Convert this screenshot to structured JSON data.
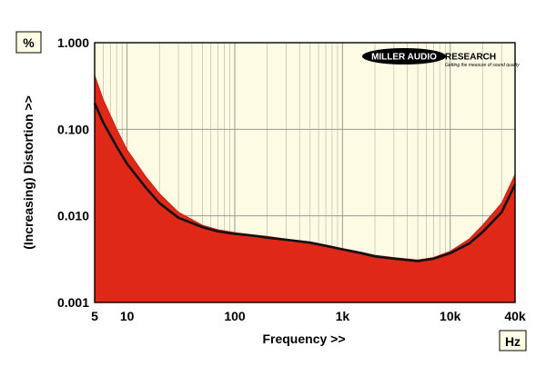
{
  "chart_data": {
    "type": "area",
    "title": "",
    "xlabel": "Frequency >>",
    "ylabel": "(Increasing) Distortion >>",
    "x_unit": "Hz",
    "y_unit": "%",
    "xscale": "log",
    "yscale": "log",
    "xlim": [
      5,
      40000
    ],
    "ylim": [
      0.001,
      1.0
    ],
    "x_ticks": [
      {
        "value": 5,
        "label": "5"
      },
      {
        "value": 10,
        "label": "10"
      },
      {
        "value": 100,
        "label": "100"
      },
      {
        "value": 1000,
        "label": "1k"
      },
      {
        "value": 10000,
        "label": "10k"
      },
      {
        "value": 40000,
        "label": "40k"
      }
    ],
    "y_ticks": [
      {
        "value": 1.0,
        "label": "1.000"
      },
      {
        "value": 0.1,
        "label": "0.100"
      },
      {
        "value": 0.01,
        "label": "0.010"
      },
      {
        "value": 0.001,
        "label": "0.001"
      }
    ],
    "grid": true,
    "series": [
      {
        "role": "upper-envelope",
        "color": "#e02818",
        "x": [
          5,
          6,
          8,
          10,
          15,
          20,
          30,
          50,
          70,
          100,
          150,
          200,
          300,
          500,
          700,
          1000,
          1500,
          2000,
          3000,
          5000,
          7000,
          10000,
          15000,
          20000,
          30000,
          40000
        ],
        "y": [
          0.42,
          0.22,
          0.1,
          0.058,
          0.028,
          0.018,
          0.011,
          0.0078,
          0.0069,
          0.0064,
          0.006,
          0.0058,
          0.0054,
          0.005,
          0.0046,
          0.0042,
          0.0038,
          0.0035,
          0.0033,
          0.0031,
          0.0033,
          0.0039,
          0.0054,
          0.0078,
          0.014,
          0.03
        ]
      },
      {
        "role": "mean-trace",
        "color": "#111111",
        "x": [
          5,
          6,
          8,
          10,
          15,
          20,
          30,
          50,
          70,
          100,
          150,
          200,
          300,
          500,
          700,
          1000,
          1500,
          2000,
          3000,
          5000,
          7000,
          10000,
          15000,
          20000,
          30000,
          40000
        ],
        "y": [
          0.2,
          0.12,
          0.063,
          0.04,
          0.021,
          0.014,
          0.0095,
          0.0074,
          0.0066,
          0.0062,
          0.0059,
          0.0056,
          0.0053,
          0.0049,
          0.0045,
          0.0041,
          0.0037,
          0.0034,
          0.0032,
          0.003,
          0.0032,
          0.0037,
          0.0048,
          0.0065,
          0.011,
          0.023
        ]
      }
    ]
  },
  "logo": {
    "brand": "MILLER AUDIO RESEARCH",
    "brand_part1": "MILLER AUDIO",
    "brand_part2": "RESEARCH",
    "tagline": "Getting the measure of sound quality"
  },
  "colors": {
    "plot_background": "#fdfbe4",
    "fill": "#e02818",
    "trace": "#111111",
    "grid": "#c0bca6"
  }
}
